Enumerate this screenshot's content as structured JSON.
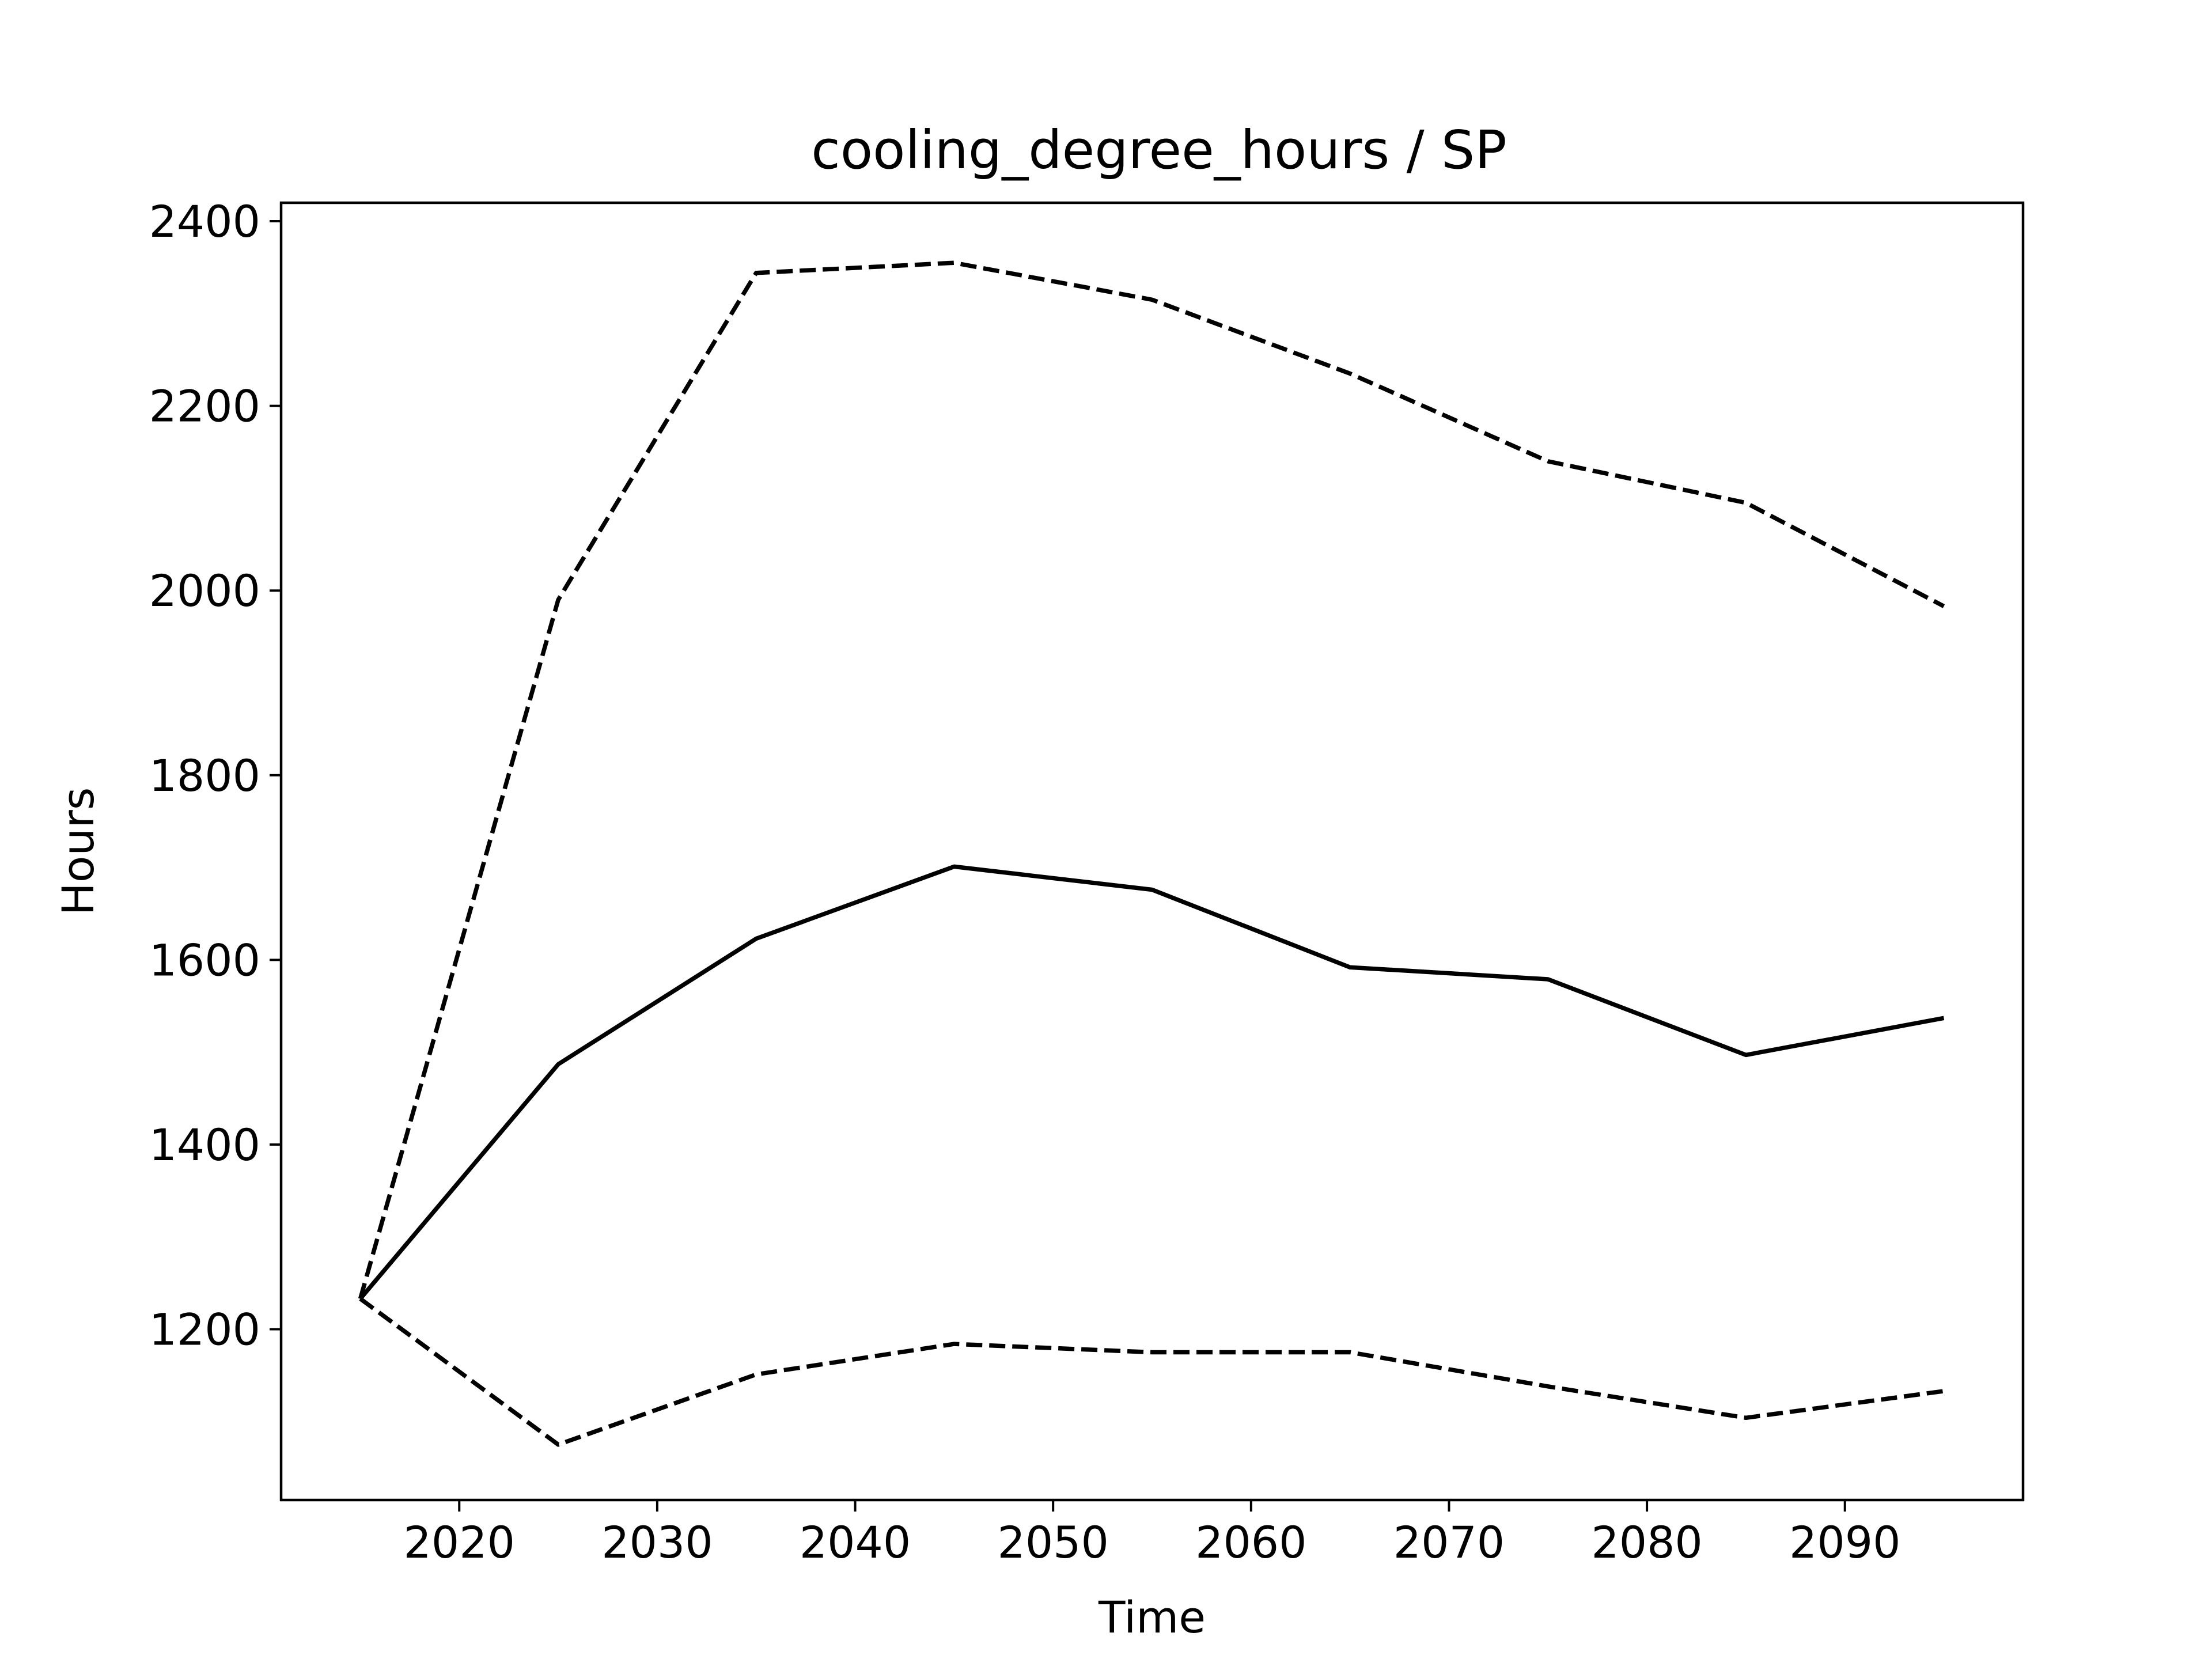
{
  "chart_data": {
    "type": "line",
    "title": "cooling_degree_hours / SP",
    "xlabel": "Time",
    "ylabel": "Hours",
    "x": [
      2015,
      2025,
      2035,
      2045,
      2055,
      2065,
      2075,
      2085,
      2095
    ],
    "xlim": [
      2011,
      2099
    ],
    "ylim": [
      1015,
      2420
    ],
    "xticks": [
      2020,
      2030,
      2040,
      2050,
      2060,
      2070,
      2080,
      2090
    ],
    "yticks": [
      1200,
      1400,
      1600,
      1800,
      2000,
      2200,
      2400
    ],
    "grid": false,
    "series": [
      {
        "style": "dashed",
        "color": "#000000",
        "values": [
          1233,
          1990,
          2344,
          2355,
          2315,
          2235,
          2140,
          2095,
          1983
        ]
      },
      {
        "style": "solid",
        "color": "#000000",
        "values": [
          1233,
          1487,
          1623,
          1701,
          1676,
          1592,
          1579,
          1497,
          1537
        ]
      },
      {
        "style": "dashed",
        "color": "#000000",
        "values": [
          1233,
          1075,
          1151,
          1184,
          1175,
          1175,
          1138,
          1104,
          1133
        ]
      }
    ]
  }
}
